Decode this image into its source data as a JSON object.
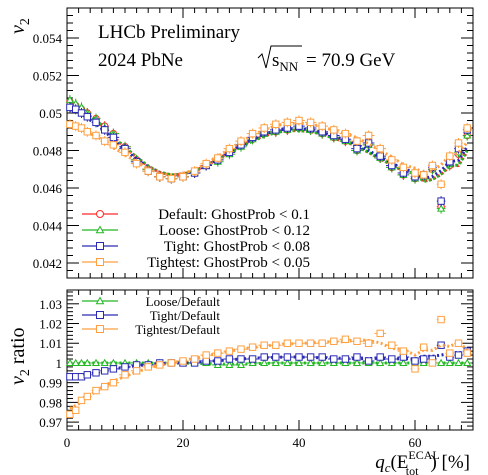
{
  "chart_data": [
    {
      "type": "scatter",
      "title_lines": [
        "LHCb Preliminary",
        "2024 PbNe"
      ],
      "energy": {
        "prefix": "s",
        "sub": "NN",
        "value": "= 70.9 GeV"
      },
      "ylabel": "v",
      "ylabel_sub": "2",
      "xlim": [
        0,
        70
      ],
      "ylim": [
        0.0412,
        0.0556
      ],
      "yticks": [
        0.042,
        0.044,
        0.046,
        0.048,
        0.05,
        0.052,
        0.054
      ],
      "ytick_labels": [
        "0.042",
        "0.044",
        "0.046",
        "0.048",
        "0.05",
        "0.052",
        "0.054"
      ],
      "legend_placement": "lower-left",
      "series": [
        {
          "name": "Default: GhostProb < 0.1",
          "color": "#ff2a2a",
          "marker": "circle",
          "x": [
            0.5,
            1.5,
            2.5,
            3.5,
            5.0,
            6.5,
            8,
            10,
            12,
            14,
            16,
            18,
            20,
            22,
            24,
            26,
            28,
            30,
            32,
            34,
            36,
            38,
            40,
            42,
            44,
            46,
            48,
            50,
            52,
            54,
            56,
            58,
            60,
            61.5,
            63,
            64.5,
            66,
            67.5,
            69
          ],
          "y": [
            0.0506,
            0.0504,
            0.0502,
            0.05,
            0.0497,
            0.0493,
            0.0489,
            0.0482,
            0.0475,
            0.047,
            0.0466,
            0.0465,
            0.0466,
            0.0468,
            0.0472,
            0.0475,
            0.0479,
            0.0483,
            0.0486,
            0.0489,
            0.049,
            0.0491,
            0.0492,
            0.0491,
            0.0489,
            0.0487,
            0.0485,
            0.048,
            0.0483,
            0.0476,
            0.0471,
            0.0467,
            0.0465,
            0.0466,
            0.047,
            0.045,
            0.0472,
            0.0478,
            0.0488
          ]
        },
        {
          "name": "Loose: GhostProb < 0.12",
          "color": "#22b822",
          "marker": "triangle",
          "x": [
            0.5,
            1.5,
            2.5,
            3.5,
            5.0,
            6.5,
            8,
            10,
            12,
            14,
            16,
            18,
            20,
            22,
            24,
            26,
            28,
            30,
            32,
            34,
            36,
            38,
            40,
            42,
            44,
            46,
            48,
            50,
            52,
            54,
            56,
            58,
            60,
            61.5,
            63,
            64.5,
            66,
            67.5,
            69
          ],
          "y": [
            0.0507,
            0.0505,
            0.0503,
            0.05,
            0.0497,
            0.0492,
            0.0489,
            0.0482,
            0.0475,
            0.047,
            0.0466,
            0.0465,
            0.0466,
            0.0468,
            0.0472,
            0.0474,
            0.0478,
            0.0482,
            0.0486,
            0.0489,
            0.049,
            0.0491,
            0.0492,
            0.0491,
            0.0489,
            0.0487,
            0.0485,
            0.048,
            0.0483,
            0.0476,
            0.0471,
            0.0467,
            0.0465,
            0.0466,
            0.047,
            0.0449,
            0.0473,
            0.0479,
            0.0488
          ]
        },
        {
          "name": "Tight: GhostProb < 0.08",
          "color": "#2a2ab4",
          "marker": "square",
          "x": [
            0.5,
            1.5,
            2.5,
            3.5,
            5.0,
            6.5,
            8,
            10,
            12,
            14,
            16,
            18,
            20,
            22,
            24,
            26,
            28,
            30,
            32,
            34,
            36,
            38,
            40,
            42,
            44,
            46,
            48,
            50,
            52,
            54,
            56,
            58,
            60,
            61.5,
            63,
            64.5,
            66,
            67.5,
            69
          ],
          "y": [
            0.0503,
            0.0502,
            0.05,
            0.0498,
            0.0495,
            0.0491,
            0.0487,
            0.0481,
            0.0474,
            0.0469,
            0.0466,
            0.0465,
            0.0466,
            0.0468,
            0.0472,
            0.0475,
            0.0479,
            0.0483,
            0.0487,
            0.049,
            0.0491,
            0.0492,
            0.0493,
            0.0492,
            0.049,
            0.0488,
            0.0486,
            0.0481,
            0.0484,
            0.0477,
            0.0472,
            0.0468,
            0.0466,
            0.0467,
            0.0471,
            0.0453,
            0.0474,
            0.0481,
            0.0491
          ]
        },
        {
          "name": "Tightest: GhostProb < 0.05",
          "color": "#ff9f40",
          "marker": "square",
          "x": [
            0.5,
            1.5,
            2.5,
            3.5,
            5.0,
            6.5,
            8,
            10,
            12,
            14,
            16,
            18,
            20,
            22,
            24,
            26,
            28,
            30,
            32,
            34,
            36,
            38,
            40,
            42,
            44,
            46,
            48,
            50,
            52,
            54,
            56,
            58,
            60,
            61.5,
            63,
            64.5,
            66,
            67.5,
            69
          ],
          "y": [
            0.0494,
            0.0493,
            0.0492,
            0.049,
            0.0488,
            0.0485,
            0.0483,
            0.0479,
            0.0473,
            0.0469,
            0.0466,
            0.0465,
            0.0466,
            0.0469,
            0.0473,
            0.0476,
            0.0481,
            0.0485,
            0.0489,
            0.0492,
            0.0494,
            0.0495,
            0.0496,
            0.0495,
            0.0493,
            0.0491,
            0.0489,
            0.0485,
            0.0488,
            0.0481,
            0.0475,
            0.0471,
            0.0468,
            0.0467,
            0.0472,
            0.0462,
            0.0477,
            0.0484,
            0.0492
          ]
        }
      ]
    },
    {
      "type": "scatter",
      "ylabel": "v",
      "ylabel_sub": "2",
      "ylabel_suffix": " ratio",
      "xlabel": "q",
      "xlabel_sub": "c",
      "xlabel_paren": "(E",
      "xlabel_sup": "ECAL",
      "xlabel_sub2": "tot",
      "xlabel_close": ") [%]",
      "xlim": [
        0,
        70
      ],
      "ylim": [
        0.966,
        1.037
      ],
      "xticks": [
        0,
        20,
        40,
        60
      ],
      "xtick_labels": [
        "0",
        "20",
        "40",
        "60"
      ],
      "yticks": [
        0.97,
        0.98,
        0.99,
        1,
        1.01,
        1.02,
        1.03
      ],
      "ytick_labels": [
        "0.97",
        "0.98",
        "0.99",
        "1",
        "1.01",
        "1.02",
        "1.03"
      ],
      "legend_placement": "top-left",
      "series": [
        {
          "name": "Loose/Default",
          "color": "#22b822",
          "marker": "triangle",
          "x": [
            0.5,
            1.5,
            2.5,
            3.5,
            5.0,
            6.5,
            8,
            10,
            12,
            14,
            16,
            18,
            20,
            22,
            24,
            26,
            28,
            30,
            32,
            34,
            36,
            38,
            40,
            42,
            44,
            46,
            48,
            50,
            52,
            54,
            56,
            58,
            60,
            61.5,
            63,
            64.5,
            66,
            67.5,
            69
          ],
          "y": [
            1.0,
            1.0,
            1.0,
            1.0,
            1.0,
            1.0,
            1.0,
            1.0,
            1.0,
            1.0,
            1.0,
            1.0,
            1.0,
            1.0,
            1.0,
            0.999,
            0.999,
            0.999,
            1.0,
            1.0,
            1.0,
            1.0,
            1.0,
            1.0,
            1.0,
            1.0,
            1.0,
            1.0,
            1.0,
            1.0,
            1.0,
            1.0,
            1.0,
            1.0,
            1.0,
            1.0,
            1.0,
            1.0,
            1.0
          ]
        },
        {
          "name": "Tight/Default",
          "color": "#2a2ab4",
          "marker": "square",
          "x": [
            0.5,
            1.5,
            2.5,
            3.5,
            5.0,
            6.5,
            8,
            10,
            12,
            14,
            16,
            18,
            20,
            22,
            24,
            26,
            28,
            30,
            32,
            34,
            36,
            38,
            40,
            42,
            44,
            46,
            48,
            50,
            52,
            54,
            56,
            58,
            60,
            61.5,
            63,
            64.5,
            66,
            67.5,
            69
          ],
          "y": [
            0.993,
            0.993,
            0.993,
            0.994,
            0.995,
            0.996,
            0.997,
            0.998,
            0.999,
            0.999,
            1.0,
            1.0,
            1.0,
            1.0,
            1.001,
            1.001,
            1.002,
            1.002,
            1.002,
            1.003,
            1.003,
            1.003,
            1.003,
            1.003,
            1.003,
            1.002,
            1.002,
            1.003,
            1.001,
            1.003,
            1.002,
            1.003,
            1.001,
            1.002,
            1.002,
            1.009,
            1.003,
            1.004,
            1.006
          ]
        },
        {
          "name": "Tightest/Default",
          "color": "#ff9f40",
          "marker": "square",
          "x": [
            0.5,
            1.5,
            2.5,
            3.5,
            5.0,
            6.5,
            8,
            10,
            12,
            14,
            16,
            18,
            20,
            22,
            24,
            26,
            28,
            30,
            32,
            34,
            36,
            38,
            40,
            42,
            44,
            46,
            48,
            50,
            52,
            54,
            56,
            58,
            60,
            61.5,
            63,
            64.5,
            66,
            67.5,
            69
          ],
          "y": [
            0.974,
            0.976,
            0.981,
            0.983,
            0.986,
            0.988,
            0.99,
            0.994,
            0.996,
            0.998,
            0.999,
            1.0,
            1.001,
            1.002,
            1.004,
            1.005,
            1.006,
            1.007,
            1.008,
            1.009,
            1.009,
            1.01,
            1.01,
            1.01,
            1.01,
            1.011,
            1.012,
            1.011,
            1.01,
            1.015,
            1.009,
            1.006,
            0.997,
            1.008,
            1.0,
            1.022,
            1.005,
            1.01,
            1.005
          ]
        }
      ]
    }
  ]
}
